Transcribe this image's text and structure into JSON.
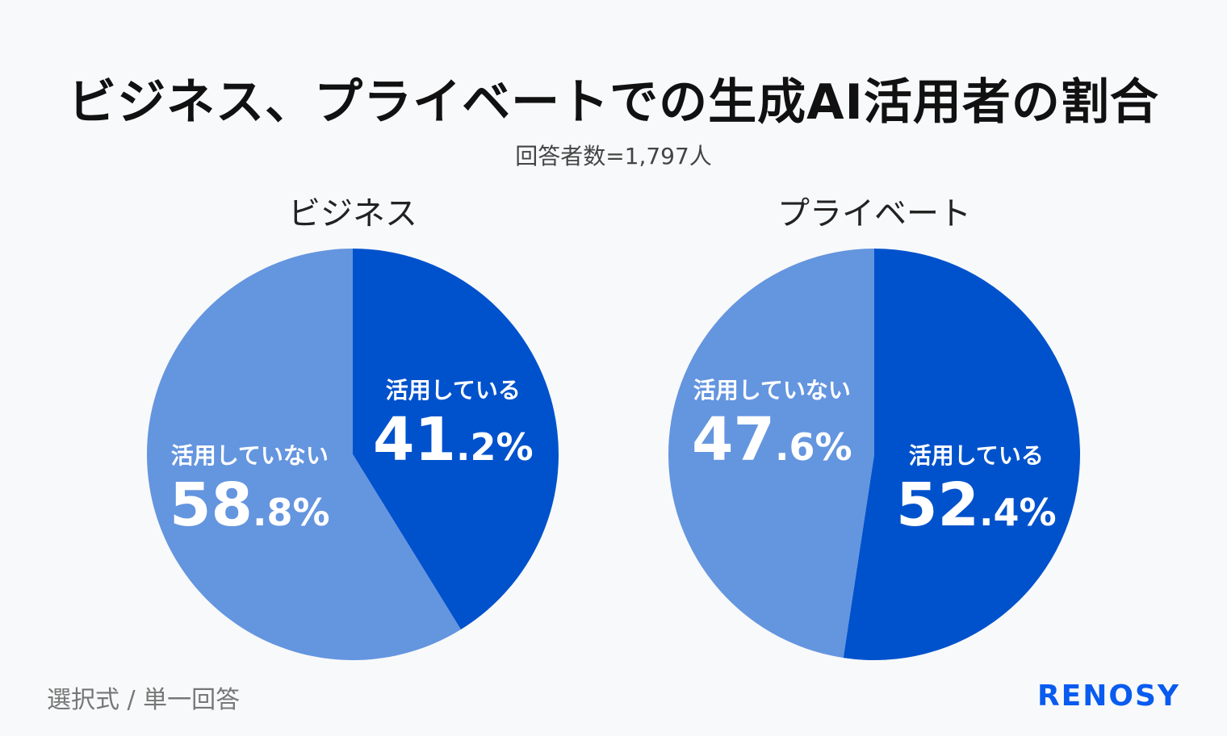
{
  "title": "ビジネス、プライベートでの生成AI活用者の割合",
  "subtitle": "回答者数=1,797人",
  "footer": "選択式 / 単一回答",
  "logo": "RENOSY",
  "colors": {
    "used": "#0052cc",
    "not_used": "#6495df",
    "background": "#f8f9fa",
    "logo": "#0a5bef"
  },
  "chart_data": [
    {
      "type": "pie",
      "title": "ビジネス",
      "slices": [
        {
          "label": "活用している",
          "value": 41.2,
          "display": "41.2%",
          "color": "#0052cc"
        },
        {
          "label": "活用していない",
          "value": 58.8,
          "display": "58.8%",
          "color": "#6495df"
        }
      ]
    },
    {
      "type": "pie",
      "title": "プライベート",
      "slices": [
        {
          "label": "活用している",
          "value": 52.4,
          "display": "52.4%",
          "color": "#0052cc"
        },
        {
          "label": "活用していない",
          "value": 47.6,
          "display": "47.6%",
          "color": "#6495df"
        }
      ]
    }
  ]
}
